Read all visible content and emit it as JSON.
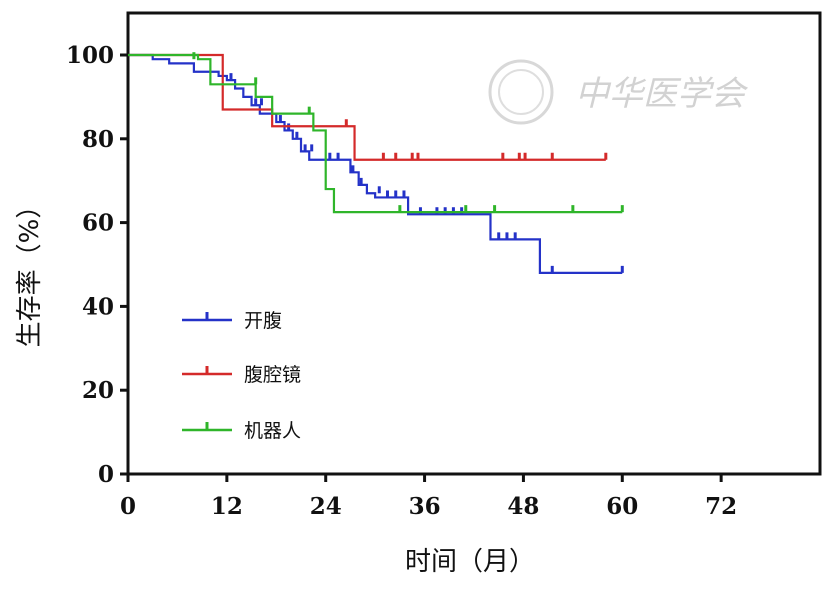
{
  "chart_data": {
    "type": "line",
    "step": true,
    "title": "",
    "xlabel": "时间（月）",
    "ylabel": "生存率（%）",
    "xlim": [
      0,
      84
    ],
    "ylim": [
      0,
      100
    ],
    "xticks": [
      0,
      12,
      24,
      36,
      48,
      60,
      72
    ],
    "yticks": [
      0,
      20,
      40,
      60,
      80,
      100
    ],
    "grid": false,
    "legend_position": "lower-left",
    "series": [
      {
        "name": "开腹",
        "color": "#2432c8",
        "x": [
          0,
          3,
          5,
          8,
          11,
          12,
          13,
          14,
          15,
          16,
          18,
          19,
          20,
          21,
          22,
          23,
          25,
          27,
          28,
          29,
          30,
          34,
          44,
          50,
          60
        ],
        "y": [
          100,
          99,
          98,
          96,
          95,
          94,
          92,
          90,
          88,
          86,
          84,
          82,
          80,
          77,
          75,
          75,
          75,
          72,
          69,
          67,
          66,
          62,
          56,
          48,
          48
        ],
        "censored": [
          {
            "x": 12.5,
            "y": 94
          },
          {
            "x": 15.5,
            "y": 88
          },
          {
            "x": 16.2,
            "y": 88
          },
          {
            "x": 18.5,
            "y": 84
          },
          {
            "x": 19.5,
            "y": 82
          },
          {
            "x": 20.5,
            "y": 80
          },
          {
            "x": 21.5,
            "y": 77
          },
          {
            "x": 22.3,
            "y": 77
          },
          {
            "x": 24.5,
            "y": 75
          },
          {
            "x": 25.5,
            "y": 75
          },
          {
            "x": 27.3,
            "y": 72
          },
          {
            "x": 28.3,
            "y": 69
          },
          {
            "x": 30.5,
            "y": 67
          },
          {
            "x": 31.5,
            "y": 66
          },
          {
            "x": 32.5,
            "y": 66
          },
          {
            "x": 33.5,
            "y": 66
          },
          {
            "x": 35.5,
            "y": 62
          },
          {
            "x": 37.5,
            "y": 62
          },
          {
            "x": 38.5,
            "y": 62
          },
          {
            "x": 39.5,
            "y": 62
          },
          {
            "x": 40.5,
            "y": 62
          },
          {
            "x": 45,
            "y": 56
          },
          {
            "x": 46,
            "y": 56
          },
          {
            "x": 47,
            "y": 56
          },
          {
            "x": 51.5,
            "y": 48
          },
          {
            "x": 60,
            "y": 48
          }
        ]
      },
      {
        "name": "腹腔镜",
        "color": "#d42a2a",
        "x": [
          0,
          9.5,
          11.5,
          17.5,
          27.5,
          58
        ],
        "y": [
          100,
          100,
          87,
          83,
          75,
          75
        ],
        "censored": [
          {
            "x": 26.5,
            "y": 83
          },
          {
            "x": 31,
            "y": 75
          },
          {
            "x": 32.5,
            "y": 75
          },
          {
            "x": 34.5,
            "y": 75
          },
          {
            "x": 35.2,
            "y": 75
          },
          {
            "x": 45.5,
            "y": 75
          },
          {
            "x": 47.5,
            "y": 75
          },
          {
            "x": 48.2,
            "y": 75
          },
          {
            "x": 51.5,
            "y": 75
          },
          {
            "x": 58,
            "y": 75
          }
        ]
      },
      {
        "name": "机器人",
        "color": "#2fb52a",
        "x": [
          0,
          8.5,
          10,
          15.5,
          17.5,
          22.5,
          24,
          25,
          60
        ],
        "y": [
          100,
          99,
          93,
          90,
          86,
          82,
          68,
          62.5,
          62.5
        ],
        "censored": [
          {
            "x": 8,
            "y": 99
          },
          {
            "x": 15.5,
            "y": 93
          },
          {
            "x": 22,
            "y": 86
          },
          {
            "x": 33,
            "y": 62.5
          },
          {
            "x": 41,
            "y": 62.5
          },
          {
            "x": 44.5,
            "y": 62.5
          },
          {
            "x": 54,
            "y": 62.5
          },
          {
            "x": 60,
            "y": 62.5
          }
        ]
      }
    ]
  },
  "watermark": {
    "text": "中华医学会",
    "emblem": "chinese-medical-association-seal"
  }
}
